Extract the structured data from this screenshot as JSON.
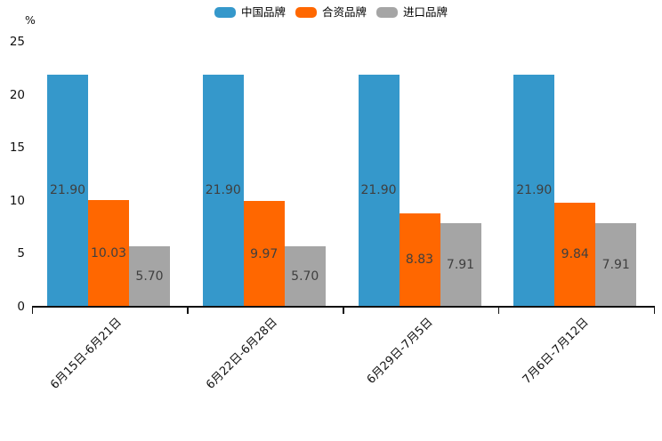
{
  "chart_data": {
    "type": "bar",
    "title": "",
    "unit_label": "%",
    "categories": [
      "6月15日-6月21日",
      "6月22日-6月28日",
      "6月29日-7月5日",
      "7月6日-7月12日"
    ],
    "series": [
      {
        "name": "中国品牌",
        "color": "#3598CB",
        "values": [
          21.9,
          21.9,
          21.9,
          21.9
        ]
      },
      {
        "name": "合资品牌",
        "color": "#FF6700",
        "values": [
          10.03,
          9.97,
          8.83,
          9.84
        ]
      },
      {
        "name": "进口品牌",
        "color": "#A5A5A5",
        "values": [
          5.7,
          5.7,
          7.91,
          7.91
        ]
      }
    ],
    "y_ticks": [
      0,
      5,
      10,
      15,
      20,
      25
    ],
    "ylim": [
      0,
      25
    ],
    "grid": false,
    "legend_position": "top",
    "value_label_decimals": 2,
    "value_label_color": "#3F3F3F",
    "axis_color": "#111111"
  }
}
